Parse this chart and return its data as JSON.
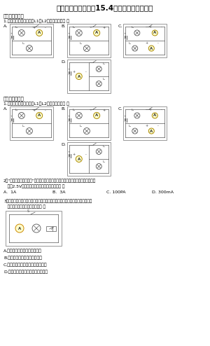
{
  "title": "人教版九年级全一册15.4电流的测量同步练习",
  "bg_color": "#ffffff",
  "section1": "一、单项选择题",
  "q1_text": "1.图中，能正确测量通过L1和L2电流的电路是（ ）",
  "q2_line1": "2．“勤于观察，乐于动手”是学科物理很名、持续探索的重要方法。在某实验时，实",
  "q2_line2": "   验用2.5V的分行程正常工作时的电流的方式（ ）",
  "q2_choices": [
    "A.  1A",
    "B.  3A",
    "C. 100PA",
    "D. 300mA"
  ],
  "q3_line1": "3．如下图的电路，电源电压保持不变，图中开关，刀滑动变阵器的调不同方向移",
  "q3_line2": "   动时，以下分析正确的结论是（ ）",
  "q3_choices": [
    "A.灯泡亮化，电流表的示数变大",
    "B.灯泡变暗，电流表的示数变小",
    "C.灯泡亮度不变，电流表的示数变大",
    "D.灯泡亮度不变，电流表的示数变小"
  ]
}
